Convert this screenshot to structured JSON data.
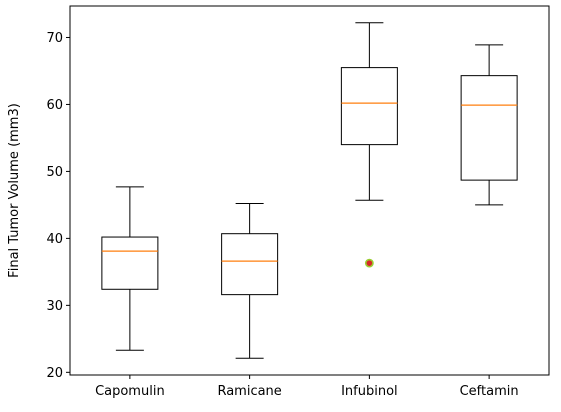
{
  "chart_data": {
    "type": "box",
    "title": "",
    "xlabel": "",
    "ylabel": "Final Tumor Volume (mm3)",
    "ylim": [
      19.6,
      74.7
    ],
    "yticks": [
      20,
      30,
      40,
      50,
      60,
      70
    ],
    "grid": false,
    "categories": [
      "Capomulin",
      "Ramicane",
      "Infubinol",
      "Ceftamin"
    ],
    "boxes": [
      {
        "name": "Capomulin",
        "whisker_low": 23.3,
        "q1": 32.4,
        "median": 38.1,
        "q3": 40.2,
        "whisker_high": 47.7,
        "outliers": []
      },
      {
        "name": "Ramicane",
        "whisker_low": 22.1,
        "q1": 31.6,
        "median": 36.6,
        "q3": 40.7,
        "whisker_high": 45.2,
        "outliers": []
      },
      {
        "name": "Infubinol",
        "whisker_low": 45.7,
        "q1": 54.0,
        "median": 60.2,
        "q3": 65.5,
        "whisker_high": 72.2,
        "outliers": [
          36.3
        ]
      },
      {
        "name": "Ceftamin",
        "whisker_low": 45.0,
        "q1": 48.7,
        "median": 59.9,
        "q3": 64.3,
        "whisker_high": 68.9,
        "outliers": []
      }
    ],
    "colors": {
      "box": "#000000",
      "median": "#ff7f0e",
      "outlier_face": "#d62728",
      "outlier_edge": "#9acd32"
    }
  }
}
